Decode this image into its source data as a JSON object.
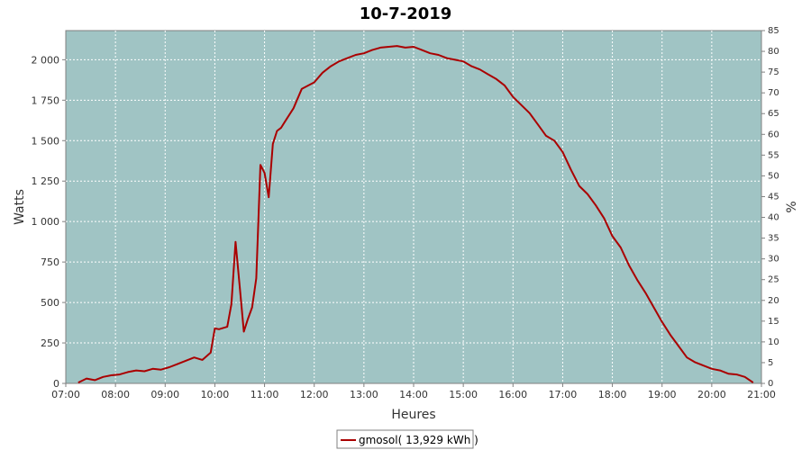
{
  "chart_data": {
    "type": "line",
    "title": "10-7-2019",
    "xlabel": "Heures",
    "ylabel": "Watts",
    "y2label": "%",
    "xlim": [
      "07:00",
      "21:00"
    ],
    "ylim": [
      0,
      2180
    ],
    "y2lim": [
      0,
      85
    ],
    "x_ticks": [
      "07:00",
      "08:00",
      "09:00",
      "10:00",
      "11:00",
      "12:00",
      "13:00",
      "14:00",
      "15:00",
      "16:00",
      "17:00",
      "18:00",
      "19:00",
      "20:00",
      "21:00"
    ],
    "y_ticks": [
      "0",
      "250",
      "500",
      "750",
      "1 000",
      "1 250",
      "1 500",
      "1 750",
      "2 000"
    ],
    "y2_ticks": [
      "0",
      "5",
      "10",
      "15",
      "20",
      "25",
      "30",
      "35",
      "40",
      "45",
      "50",
      "55",
      "60",
      "65",
      "70",
      "75",
      "80",
      "85"
    ],
    "grid": true,
    "legend_position": "bottom-center",
    "plot_background": "#a0c4c4",
    "series": [
      {
        "name": "gmosol( 13,929 kWh )",
        "color": "#aa0000",
        "x": [
          "07:15",
          "07:25",
          "07:35",
          "07:45",
          "07:55",
          "08:05",
          "08:15",
          "08:25",
          "08:35",
          "08:45",
          "08:55",
          "09:05",
          "09:15",
          "09:25",
          "09:35",
          "09:45",
          "09:55",
          "10:00",
          "10:05",
          "10:15",
          "10:20",
          "10:25",
          "10:30",
          "10:35",
          "10:40",
          "10:45",
          "10:50",
          "10:55",
          "11:00",
          "11:05",
          "11:10",
          "11:15",
          "11:20",
          "11:25",
          "11:35",
          "11:45",
          "12:00",
          "12:10",
          "12:20",
          "12:30",
          "12:40",
          "12:50",
          "13:00",
          "13:10",
          "13:20",
          "13:30",
          "13:40",
          "13:50",
          "14:00",
          "14:10",
          "14:20",
          "14:30",
          "14:40",
          "14:50",
          "15:00",
          "15:10",
          "15:20",
          "15:30",
          "15:40",
          "15:50",
          "16:00",
          "16:10",
          "16:20",
          "16:30",
          "16:40",
          "16:50",
          "17:00",
          "17:10",
          "17:20",
          "17:30",
          "17:40",
          "17:50",
          "18:00",
          "18:10",
          "18:20",
          "18:30",
          "18:40",
          "18:50",
          "19:00",
          "19:10",
          "19:20",
          "19:30",
          "19:40",
          "19:50",
          "20:00",
          "20:10",
          "20:20",
          "20:30",
          "20:40",
          "20:50"
        ],
        "values": [
          5,
          30,
          20,
          40,
          50,
          55,
          70,
          80,
          75,
          90,
          85,
          100,
          120,
          140,
          160,
          145,
          190,
          340,
          335,
          350,
          490,
          875,
          600,
          320,
          400,
          470,
          650,
          1350,
          1300,
          1150,
          1480,
          1560,
          1580,
          1620,
          1700,
          1820,
          1860,
          1920,
          1960,
          1990,
          2010,
          2030,
          2040,
          2060,
          2075,
          2080,
          2085,
          2075,
          2080,
          2060,
          2040,
          2030,
          2010,
          2000,
          1990,
          1960,
          1940,
          1910,
          1880,
          1840,
          1770,
          1720,
          1670,
          1600,
          1530,
          1500,
          1430,
          1320,
          1220,
          1170,
          1100,
          1020,
          910,
          840,
          730,
          640,
          560,
          470,
          380,
          300,
          230,
          160,
          130,
          110,
          90,
          80,
          60,
          55,
          40,
          5
        ]
      }
    ]
  }
}
